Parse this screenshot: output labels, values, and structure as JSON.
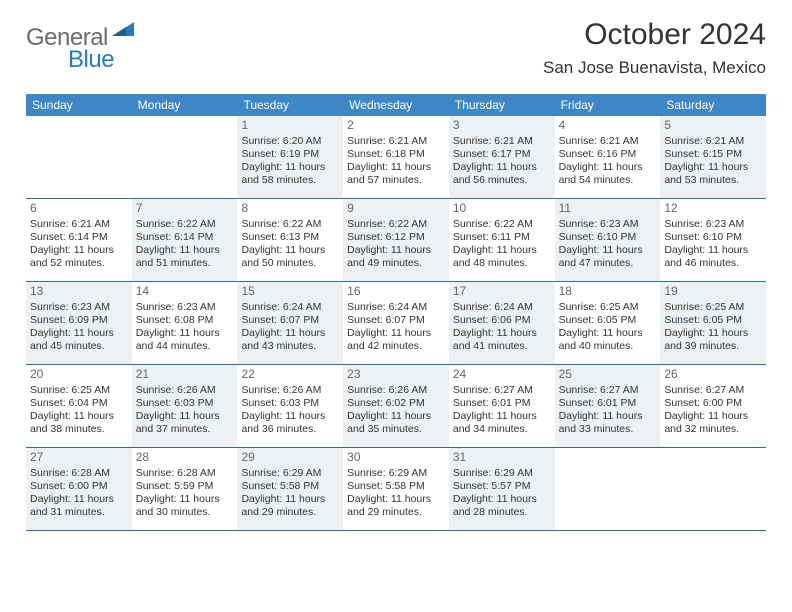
{
  "logo": {
    "gray": "General",
    "blue": "Blue"
  },
  "header": {
    "month_title": "October 2024",
    "location": "San Jose Buenavista, Mexico"
  },
  "colors": {
    "header_bg": "#3d87c7",
    "week_border": "#2a6ca3",
    "shaded_bg": "#eef1f3",
    "logo_gray": "#6b6b6b",
    "logo_blue": "#2a7ab8"
  },
  "day_names": [
    "Sunday",
    "Monday",
    "Tuesday",
    "Wednesday",
    "Thursday",
    "Friday",
    "Saturday"
  ],
  "weeks": [
    [
      {
        "blank": true
      },
      {
        "blank": true
      },
      {
        "day": "1",
        "shaded": true,
        "sunrise": "Sunrise: 6:20 AM",
        "sunset": "Sunset: 6:19 PM",
        "daylight1": "Daylight: 11 hours",
        "daylight2": "and 58 minutes."
      },
      {
        "day": "2",
        "sunrise": "Sunrise: 6:21 AM",
        "sunset": "Sunset: 6:18 PM",
        "daylight1": "Daylight: 11 hours",
        "daylight2": "and 57 minutes."
      },
      {
        "day": "3",
        "shaded": true,
        "sunrise": "Sunrise: 6:21 AM",
        "sunset": "Sunset: 6:17 PM",
        "daylight1": "Daylight: 11 hours",
        "daylight2": "and 56 minutes."
      },
      {
        "day": "4",
        "sunrise": "Sunrise: 6:21 AM",
        "sunset": "Sunset: 6:16 PM",
        "daylight1": "Daylight: 11 hours",
        "daylight2": "and 54 minutes."
      },
      {
        "day": "5",
        "shaded": true,
        "sunrise": "Sunrise: 6:21 AM",
        "sunset": "Sunset: 6:15 PM",
        "daylight1": "Daylight: 11 hours",
        "daylight2": "and 53 minutes."
      }
    ],
    [
      {
        "day": "6",
        "sunrise": "Sunrise: 6:21 AM",
        "sunset": "Sunset: 6:14 PM",
        "daylight1": "Daylight: 11 hours",
        "daylight2": "and 52 minutes."
      },
      {
        "day": "7",
        "shaded": true,
        "sunrise": "Sunrise: 6:22 AM",
        "sunset": "Sunset: 6:14 PM",
        "daylight1": "Daylight: 11 hours",
        "daylight2": "and 51 minutes."
      },
      {
        "day": "8",
        "sunrise": "Sunrise: 6:22 AM",
        "sunset": "Sunset: 6:13 PM",
        "daylight1": "Daylight: 11 hours",
        "daylight2": "and 50 minutes."
      },
      {
        "day": "9",
        "shaded": true,
        "sunrise": "Sunrise: 6:22 AM",
        "sunset": "Sunset: 6:12 PM",
        "daylight1": "Daylight: 11 hours",
        "daylight2": "and 49 minutes."
      },
      {
        "day": "10",
        "sunrise": "Sunrise: 6:22 AM",
        "sunset": "Sunset: 6:11 PM",
        "daylight1": "Daylight: 11 hours",
        "daylight2": "and 48 minutes."
      },
      {
        "day": "11",
        "shaded": true,
        "sunrise": "Sunrise: 6:23 AM",
        "sunset": "Sunset: 6:10 PM",
        "daylight1": "Daylight: 11 hours",
        "daylight2": "and 47 minutes."
      },
      {
        "day": "12",
        "sunrise": "Sunrise: 6:23 AM",
        "sunset": "Sunset: 6:10 PM",
        "daylight1": "Daylight: 11 hours",
        "daylight2": "and 46 minutes."
      }
    ],
    [
      {
        "day": "13",
        "shaded": true,
        "sunrise": "Sunrise: 6:23 AM",
        "sunset": "Sunset: 6:09 PM",
        "daylight1": "Daylight: 11 hours",
        "daylight2": "and 45 minutes."
      },
      {
        "day": "14",
        "sunrise": "Sunrise: 6:23 AM",
        "sunset": "Sunset: 6:08 PM",
        "daylight1": "Daylight: 11 hours",
        "daylight2": "and 44 minutes."
      },
      {
        "day": "15",
        "shaded": true,
        "sunrise": "Sunrise: 6:24 AM",
        "sunset": "Sunset: 6:07 PM",
        "daylight1": "Daylight: 11 hours",
        "daylight2": "and 43 minutes."
      },
      {
        "day": "16",
        "sunrise": "Sunrise: 6:24 AM",
        "sunset": "Sunset: 6:07 PM",
        "daylight1": "Daylight: 11 hours",
        "daylight2": "and 42 minutes."
      },
      {
        "day": "17",
        "shaded": true,
        "sunrise": "Sunrise: 6:24 AM",
        "sunset": "Sunset: 6:06 PM",
        "daylight1": "Daylight: 11 hours",
        "daylight2": "and 41 minutes."
      },
      {
        "day": "18",
        "sunrise": "Sunrise: 6:25 AM",
        "sunset": "Sunset: 6:05 PM",
        "daylight1": "Daylight: 11 hours",
        "daylight2": "and 40 minutes."
      },
      {
        "day": "19",
        "shaded": true,
        "sunrise": "Sunrise: 6:25 AM",
        "sunset": "Sunset: 6:05 PM",
        "daylight1": "Daylight: 11 hours",
        "daylight2": "and 39 minutes."
      }
    ],
    [
      {
        "day": "20",
        "sunrise": "Sunrise: 6:25 AM",
        "sunset": "Sunset: 6:04 PM",
        "daylight1": "Daylight: 11 hours",
        "daylight2": "and 38 minutes."
      },
      {
        "day": "21",
        "shaded": true,
        "sunrise": "Sunrise: 6:26 AM",
        "sunset": "Sunset: 6:03 PM",
        "daylight1": "Daylight: 11 hours",
        "daylight2": "and 37 minutes."
      },
      {
        "day": "22",
        "sunrise": "Sunrise: 6:26 AM",
        "sunset": "Sunset: 6:03 PM",
        "daylight1": "Daylight: 11 hours",
        "daylight2": "and 36 minutes."
      },
      {
        "day": "23",
        "shaded": true,
        "sunrise": "Sunrise: 6:26 AM",
        "sunset": "Sunset: 6:02 PM",
        "daylight1": "Daylight: 11 hours",
        "daylight2": "and 35 minutes."
      },
      {
        "day": "24",
        "sunrise": "Sunrise: 6:27 AM",
        "sunset": "Sunset: 6:01 PM",
        "daylight1": "Daylight: 11 hours",
        "daylight2": "and 34 minutes."
      },
      {
        "day": "25",
        "shaded": true,
        "sunrise": "Sunrise: 6:27 AM",
        "sunset": "Sunset: 6:01 PM",
        "daylight1": "Daylight: 11 hours",
        "daylight2": "and 33 minutes."
      },
      {
        "day": "26",
        "sunrise": "Sunrise: 6:27 AM",
        "sunset": "Sunset: 6:00 PM",
        "daylight1": "Daylight: 11 hours",
        "daylight2": "and 32 minutes."
      }
    ],
    [
      {
        "day": "27",
        "shaded": true,
        "sunrise": "Sunrise: 6:28 AM",
        "sunset": "Sunset: 6:00 PM",
        "daylight1": "Daylight: 11 hours",
        "daylight2": "and 31 minutes."
      },
      {
        "day": "28",
        "sunrise": "Sunrise: 6:28 AM",
        "sunset": "Sunset: 5:59 PM",
        "daylight1": "Daylight: 11 hours",
        "daylight2": "and 30 minutes."
      },
      {
        "day": "29",
        "shaded": true,
        "sunrise": "Sunrise: 6:29 AM",
        "sunset": "Sunset: 5:58 PM",
        "daylight1": "Daylight: 11 hours",
        "daylight2": "and 29 minutes."
      },
      {
        "day": "30",
        "sunrise": "Sunrise: 6:29 AM",
        "sunset": "Sunset: 5:58 PM",
        "daylight1": "Daylight: 11 hours",
        "daylight2": "and 29 minutes."
      },
      {
        "day": "31",
        "shaded": true,
        "sunrise": "Sunrise: 6:29 AM",
        "sunset": "Sunset: 5:57 PM",
        "daylight1": "Daylight: 11 hours",
        "daylight2": "and 28 minutes."
      },
      {
        "blank": true
      },
      {
        "blank": true
      }
    ]
  ]
}
